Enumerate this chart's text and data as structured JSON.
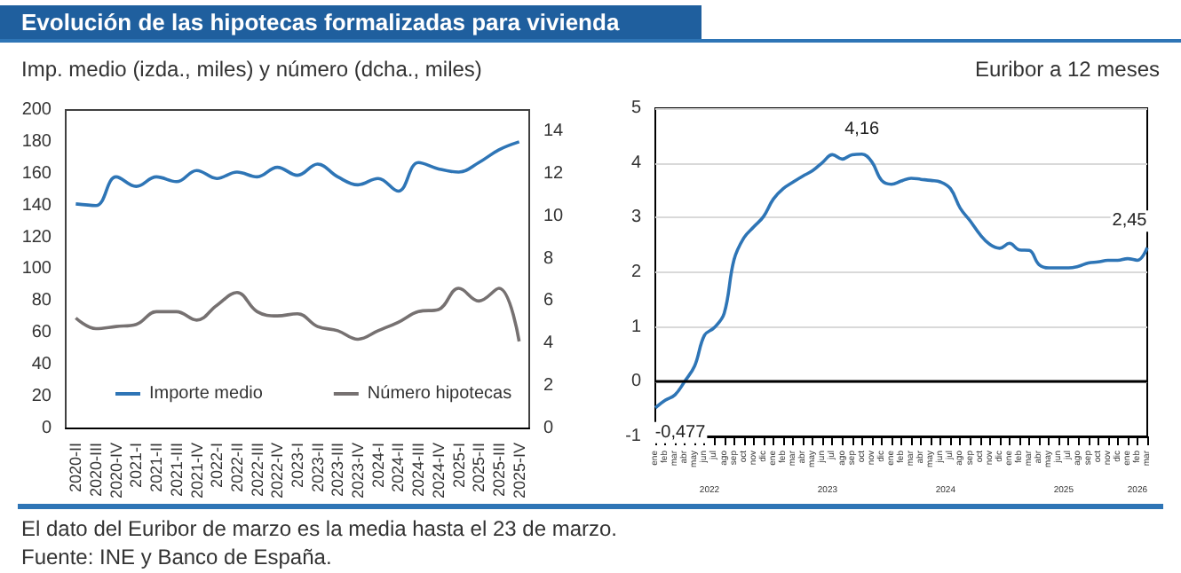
{
  "chart_data": [
    {
      "type": "line",
      "title": "Evolución de las hipotecas formalizadas para vivienda",
      "subtitle": "Imp. medio (izda., miles) y número (dcha., miles)",
      "categories": [
        "2020-II",
        "2020-III",
        "2020-IV",
        "2021-I",
        "2021-II",
        "2021-III",
        "2021-IV",
        "2022-I",
        "2022-II",
        "2022-III",
        "2022-IV",
        "2023-I",
        "2023-II",
        "2023-III",
        "2023-IV",
        "2024-I",
        "2024-II",
        "2024-III",
        "2024-IV",
        "2025-I",
        "2025-II",
        "2025-III",
        "2025-IV"
      ],
      "series": [
        {
          "name": "Importe medio",
          "color": "#2e75b6",
          "values": [
            141,
            140,
            158,
            152,
            158,
            155,
            162,
            157,
            161,
            158,
            164,
            159,
            166,
            158,
            153,
            157,
            149,
            167,
            163,
            161,
            167,
            175,
            180
          ]
        },
        {
          "name": "Número hipotecas",
          "color": "#767171",
          "axis": "y2",
          "values": [
            5.2,
            4.7,
            4.8,
            4.9,
            5.5,
            5.5,
            5.1,
            5.8,
            6.4,
            5.5,
            5.3,
            5.4,
            4.8,
            4.6,
            4.2,
            4.6,
            5.0,
            5.5,
            5.6,
            6.6,
            6.0,
            6.6,
            4.1
          ]
        }
      ],
      "ylim": [
        0,
        200
      ],
      "yticks": [
        0,
        20,
        40,
        60,
        80,
        100,
        120,
        140,
        160,
        180,
        200
      ],
      "y2lim": [
        0,
        15
      ],
      "y2ticks": [
        0,
        2,
        4,
        6,
        8,
        10,
        12,
        14
      ],
      "grid": false,
      "legend": "bottom left",
      "marker": "none",
      "annotations": [
        "El dato del Euribor de marzo es la media hasta el 23 de marzo.",
        "Fuente: INE y Banco de España."
      ]
    },
    {
      "type": "line",
      "title": "Euribor a 12 meses",
      "categories": [
        "ene",
        "feb",
        "mar",
        "abr",
        "may",
        "jun",
        "jul",
        "ago",
        "sep",
        "oct",
        "nov",
        "dic",
        "ene",
        "feb",
        "mar",
        "abr",
        "may",
        "jun",
        "jul",
        "ago",
        "sep",
        "oct",
        "nov",
        "dic",
        "ene",
        "feb",
        "mar",
        "abr",
        "may",
        "jun",
        "jul",
        "ago",
        "sep",
        "oct",
        "nov",
        "dic",
        "ene",
        "feb",
        "mar",
        "abr",
        "may",
        "jun",
        "jul",
        "ago",
        "sep",
        "oct",
        "nov",
        "dic",
        "ene",
        "feb",
        "mar"
      ],
      "series": [
        {
          "color": "#2e75b6",
          "values": [
            -0.477,
            -0.34,
            -0.24,
            0.01,
            0.29,
            0.85,
            0.99,
            1.25,
            2.23,
            2.63,
            2.83,
            3.02,
            3.34,
            3.53,
            3.65,
            3.76,
            3.86,
            4.01,
            4.15,
            4.07,
            4.15,
            4.16,
            4.02,
            3.68,
            3.61,
            3.67,
            3.72,
            3.7,
            3.68,
            3.65,
            3.53,
            3.17,
            2.94,
            2.69,
            2.51,
            2.44,
            2.53,
            2.41,
            2.4,
            2.14,
            2.08,
            2.08,
            2.08,
            2.11,
            2.17,
            2.19,
            2.22,
            2.22,
            2.25,
            2.22,
            2.45
          ],
          "value_labels": [
            "-0,477",
            null,
            null,
            null,
            null,
            null,
            null,
            null,
            null,
            null,
            null,
            null,
            null,
            null,
            null,
            null,
            null,
            null,
            null,
            null,
            null,
            "4,16",
            null,
            null,
            null,
            null,
            null,
            null,
            null,
            null,
            null,
            null,
            null,
            null,
            null,
            null,
            null,
            null,
            null,
            null,
            null,
            null,
            null,
            null,
            null,
            null,
            null,
            null,
            null,
            null,
            "2,45"
          ]
        }
      ],
      "ylim": [
        -1,
        5
      ],
      "yticks": [
        -1,
        0,
        1,
        2,
        3,
        4,
        5
      ],
      "grid": "y",
      "marker": "none",
      "ref_lines": [
        {
          "axis": "y",
          "value": 0,
          "color": "#000000"
        }
      ],
      "annotations": [
        "2022",
        "2023",
        "2024",
        "2025",
        "2026"
      ]
    }
  ]
}
